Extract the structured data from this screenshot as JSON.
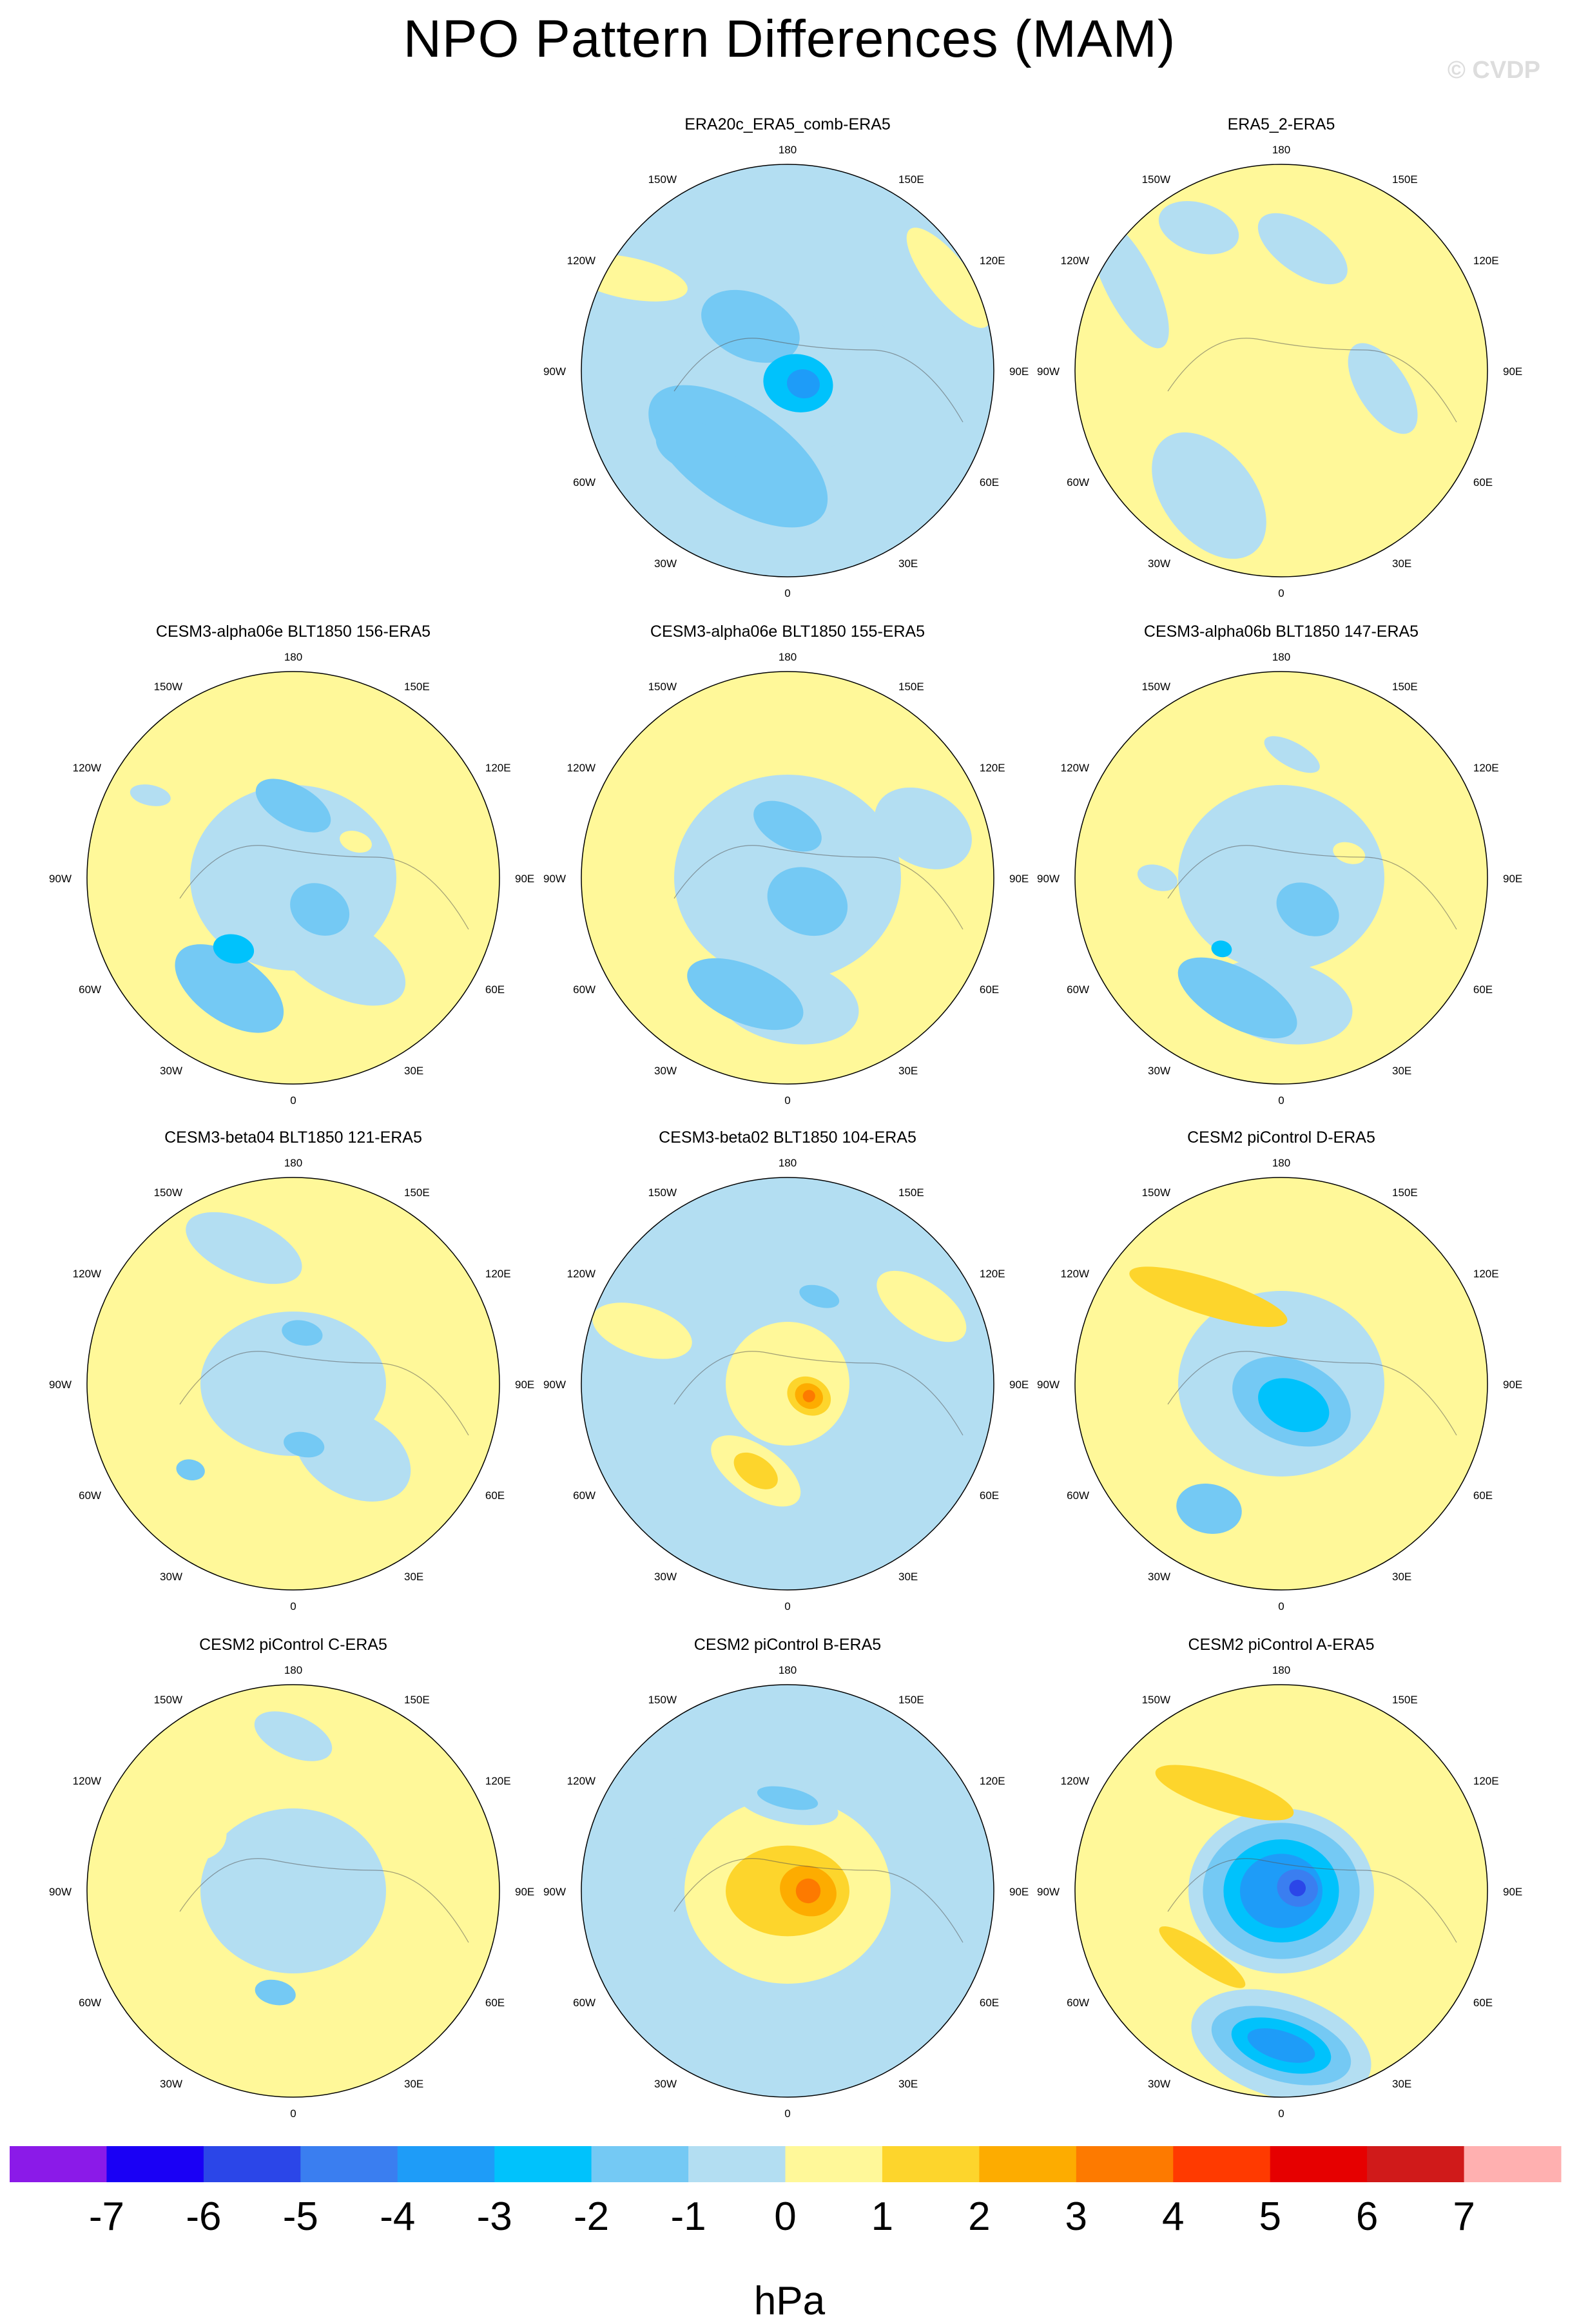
{
  "figure": {
    "title": "NPO Pattern Differences (MAM)",
    "copyright": "© CVDP",
    "unit_label": "hPa"
  },
  "colors": {
    "levels": [
      -7,
      -6,
      -5,
      -4,
      -3,
      -2,
      -1,
      0,
      1,
      2,
      3,
      4,
      5,
      6,
      7
    ],
    "fill": [
      "#8b1ae8",
      "#1a00f5",
      "#2b46e8",
      "#3a7ef0",
      "#1e9cf8",
      "#00c2fc",
      "#74c9f4",
      "#b3def2",
      "#fff899",
      "#fdd52c",
      "#fdac00",
      "#fd7a00",
      "#ff3a00",
      "#e60000",
      "#d01a1a",
      "#ffb0b0"
    ]
  },
  "map_labels": {
    "longitudes": [
      "180",
      "150E",
      "120E",
      "90E",
      "60E",
      "30E",
      "0",
      "30W",
      "60W",
      "90W",
      "120W",
      "150W"
    ]
  },
  "chart_data": [
    {
      "type": "heatmap",
      "title": "ERA20c_ERA5_comb-ERA5",
      "background": -0.5,
      "blobs": [
        [
          -1,
          0,
          0.55,
          0.4,
          0.0,
          -0.5
        ],
        [
          210,
          0.48,
          0.5,
          0.24,
          0.6,
          -1.5
        ],
        [
          320,
          0.28,
          0.25,
          0.16,
          0.4,
          -1.5
        ],
        [
          230,
          0.58,
          0.2,
          0.12,
          0.3,
          -1.5
        ],
        [
          140,
          0.08,
          0.17,
          0.14,
          0.2,
          -2.5
        ],
        [
          130,
          0.1,
          0.08,
          0.07,
          0.2,
          -3.5
        ],
        [
          60,
          0.9,
          0.3,
          0.1,
          0.9,
          0.5
        ],
        [
          300,
          0.9,
          0.3,
          0.1,
          0.2,
          0.5
        ]
      ]
    },
    {
      "type": "heatmap",
      "title": "ERA5_2-ERA5",
      "background": 0.5,
      "blobs": [
        [
          210,
          0.7,
          0.35,
          0.22,
          0.9,
          -0.5
        ],
        [
          100,
          0.5,
          0.25,
          0.12,
          1.0,
          -0.5
        ],
        [
          10,
          0.6,
          0.25,
          0.12,
          0.6,
          -0.5
        ],
        [
          300,
          0.85,
          0.35,
          0.12,
          1.1,
          -0.5
        ],
        [
          330,
          0.8,
          0.2,
          0.12,
          0.3,
          -0.5
        ]
      ]
    },
    {
      "type": "heatmap",
      "title": "CESM3-alpha06e BLT1850 156-ERA5",
      "background": 0.5,
      "blobs": [
        [
          -1,
          0,
          0.5,
          0.45,
          0.0,
          -0.5
        ],
        [
          150,
          0.45,
          0.35,
          0.18,
          0.5,
          -0.5
        ],
        [
          210,
          0.62,
          0.3,
          0.16,
          0.6,
          -1.5
        ],
        [
          220,
          0.45,
          0.1,
          0.07,
          0.2,
          -2.5
        ],
        [
          140,
          0.2,
          0.15,
          0.12,
          0.5,
          -1.5
        ],
        [
          0,
          0.35,
          0.2,
          0.1,
          0.5,
          -1.5
        ],
        [
          60,
          0.35,
          0.08,
          0.05,
          0.3,
          0.5
        ],
        [
          300,
          0.8,
          0.1,
          0.05,
          0.2,
          -0.5
        ]
      ]
    },
    {
      "type": "heatmap",
      "title": "CESM3-alpha06e BLT1850 155-ERA5",
      "background": 0.5,
      "blobs": [
        [
          -1,
          0,
          0.55,
          0.5,
          0.0,
          -0.5
        ],
        [
          180,
          0.6,
          0.35,
          0.2,
          0.2,
          -0.5
        ],
        [
          200,
          0.6,
          0.3,
          0.14,
          0.4,
          -1.5
        ],
        [
          140,
          0.15,
          0.2,
          0.16,
          0.4,
          -1.5
        ],
        [
          0,
          0.25,
          0.18,
          0.1,
          0.5,
          -1.5
        ],
        [
          70,
          0.7,
          0.25,
          0.18,
          0.5,
          -0.5
        ]
      ]
    },
    {
      "type": "heatmap",
      "title": "CESM3-alpha06b BLT1850 147-ERA5",
      "background": 0.5,
      "blobs": [
        [
          -1,
          0,
          0.5,
          0.45,
          0.0,
          -0.5
        ],
        [
          180,
          0.6,
          0.35,
          0.2,
          0.2,
          -0.5
        ],
        [
          200,
          0.62,
          0.32,
          0.14,
          0.5,
          -1.5
        ],
        [
          220,
          0.45,
          0.05,
          0.04,
          0.2,
          -2.5
        ],
        [
          140,
          0.2,
          0.16,
          0.12,
          0.5,
          -1.5
        ],
        [
          70,
          0.35,
          0.08,
          0.05,
          0.3,
          0.5
        ],
        [
          270,
          0.6,
          0.1,
          0.06,
          0.3,
          -0.5
        ],
        [
          5,
          0.6,
          0.15,
          0.06,
          0.5,
          -0.5
        ],
        [
          330,
          0.5,
          0.05,
          0.03,
          0.3,
          0.5
        ]
      ]
    },
    {
      "type": "heatmap",
      "title": "CESM3-beta04 BLT1850 121-ERA5",
      "background": 0.5,
      "blobs": [
        [
          -1,
          0,
          0.45,
          0.35,
          0.0,
          -0.5
        ],
        [
          140,
          0.45,
          0.3,
          0.2,
          0.5,
          -0.5
        ],
        [
          230,
          0.65,
          0.07,
          0.05,
          0.2,
          -1.5
        ],
        [
          170,
          0.3,
          0.1,
          0.06,
          0.2,
          -1.5
        ],
        [
          10,
          0.25,
          0.1,
          0.06,
          0.2,
          -1.5
        ],
        [
          340,
          0.7,
          0.3,
          0.14,
          0.4,
          -0.5
        ]
      ]
    },
    {
      "type": "heatmap",
      "title": "CESM3-beta02 BLT1850 104-ERA5",
      "background": -0.5,
      "blobs": [
        [
          -1,
          0,
          0.3,
          0.3,
          0.0,
          0.5
        ],
        [
          120,
          0.15,
          0.15,
          0.12,
          0.5,
          0.5
        ],
        [
          120,
          0.12,
          0.11,
          0.09,
          0.5,
          1.5
        ],
        [
          120,
          0.12,
          0.07,
          0.06,
          0.5,
          2.5
        ],
        [
          120,
          0.12,
          0.03,
          0.03,
          0.5,
          3.5
        ],
        [
          200,
          0.45,
          0.25,
          0.12,
          0.6,
          0.5
        ],
        [
          200,
          0.45,
          0.12,
          0.07,
          0.6,
          1.5
        ],
        [
          290,
          0.75,
          0.25,
          0.12,
          0.3,
          0.5
        ],
        [
          60,
          0.75,
          0.25,
          0.12,
          0.6,
          0.5
        ],
        [
          20,
          0.45,
          0.1,
          0.05,
          0.3,
          -1.5
        ]
      ]
    },
    {
      "type": "heatmap",
      "title": "CESM2 piControl D-ERA5",
      "background": 0.5,
      "blobs": [
        [
          -1,
          0,
          0.5,
          0.45,
          0.0,
          -0.5
        ],
        [
          150,
          0.1,
          0.3,
          0.2,
          0.4,
          -1.5
        ],
        [
          150,
          0.12,
          0.18,
          0.12,
          0.4,
          -2.5
        ],
        [
          210,
          0.7,
          0.16,
          0.12,
          0.2,
          -1.5
        ],
        [
          320,
          0.55,
          0.4,
          0.09,
          0.3,
          1.5
        ],
        [
          60,
          0.75,
          0.25,
          0.12,
          0.5,
          0.5
        ]
      ]
    },
    {
      "type": "heatmap",
      "title": "CESM2 piControl C-ERA5",
      "background": 0.5,
      "blobs": [
        [
          -1,
          0,
          0.45,
          0.4,
          0.0,
          -0.5
        ],
        [
          190,
          0.5,
          0.1,
          0.06,
          0.2,
          -1.5
        ],
        [
          0,
          0.75,
          0.2,
          0.1,
          0.4,
          -0.5
        ],
        [
          300,
          0.6,
          0.2,
          0.15,
          0.3,
          0.5
        ],
        [
          180,
          0.85,
          0.2,
          0.1,
          0.2,
          0.5
        ]
      ]
    },
    {
      "type": "heatmap",
      "title": "CESM2 piControl B-ERA5",
      "background": -0.5,
      "blobs": [
        [
          -1,
          0,
          0.5,
          0.45,
          0.0,
          0.5
        ],
        [
          -1,
          0,
          0.3,
          0.22,
          0.0,
          1.5
        ],
        [
          90,
          0.1,
          0.14,
          0.12,
          0.4,
          2.5
        ],
        [
          90,
          0.1,
          0.06,
          0.06,
          0.4,
          3.5
        ],
        [
          0,
          0.42,
          0.25,
          0.09,
          0.2,
          -0.5
        ],
        [
          0,
          0.45,
          0.15,
          0.05,
          0.2,
          -1.5
        ],
        [
          300,
          0.8,
          0.3,
          0.12,
          0.3,
          -0.5
        ],
        [
          70,
          0.8,
          0.3,
          0.12,
          0.5,
          -0.5
        ]
      ]
    },
    {
      "type": "heatmap",
      "title": "CESM2 piControl A-ERA5",
      "background": 0.5,
      "blobs": [
        [
          -1,
          0,
          0.45,
          0.4,
          0.0,
          -0.5
        ],
        [
          -1,
          0,
          0.38,
          0.33,
          0.0,
          -1.5
        ],
        [
          -1,
          0,
          0.28,
          0.25,
          0.0,
          -2.5
        ],
        [
          -1,
          0,
          0.2,
          0.18,
          0.0,
          -3.5
        ],
        [
          80,
          0.08,
          0.1,
          0.09,
          0.3,
          -4.5
        ],
        [
          80,
          0.08,
          0.04,
          0.04,
          0.3,
          -5.5
        ],
        [
          180,
          0.75,
          0.45,
          0.25,
          0.3,
          -0.5
        ],
        [
          180,
          0.75,
          0.35,
          0.17,
          0.3,
          -1.5
        ],
        [
          180,
          0.75,
          0.25,
          0.12,
          0.3,
          -2.5
        ],
        [
          180,
          0.75,
          0.17,
          0.07,
          0.3,
          -3.5
        ],
        [
          330,
          0.55,
          0.35,
          0.09,
          0.3,
          1.5
        ],
        [
          230,
          0.5,
          0.25,
          0.06,
          0.6,
          1.5
        ],
        [
          10,
          0.55,
          0.15,
          0.1,
          0.3,
          0.5
        ]
      ]
    }
  ]
}
